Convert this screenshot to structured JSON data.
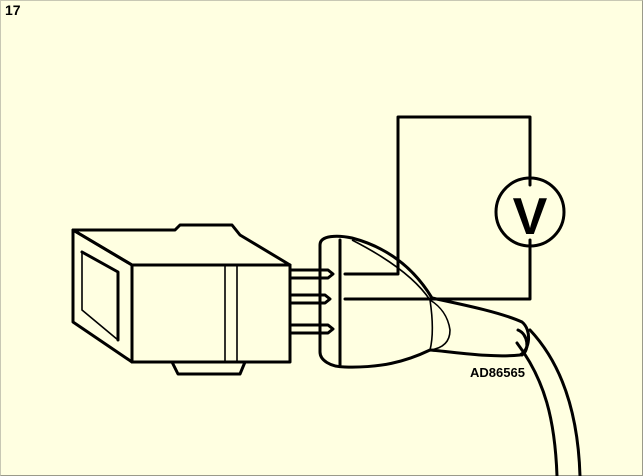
{
  "figure": {
    "number": "17",
    "part_code": "AD86565",
    "meter_symbol": "V"
  }
}
